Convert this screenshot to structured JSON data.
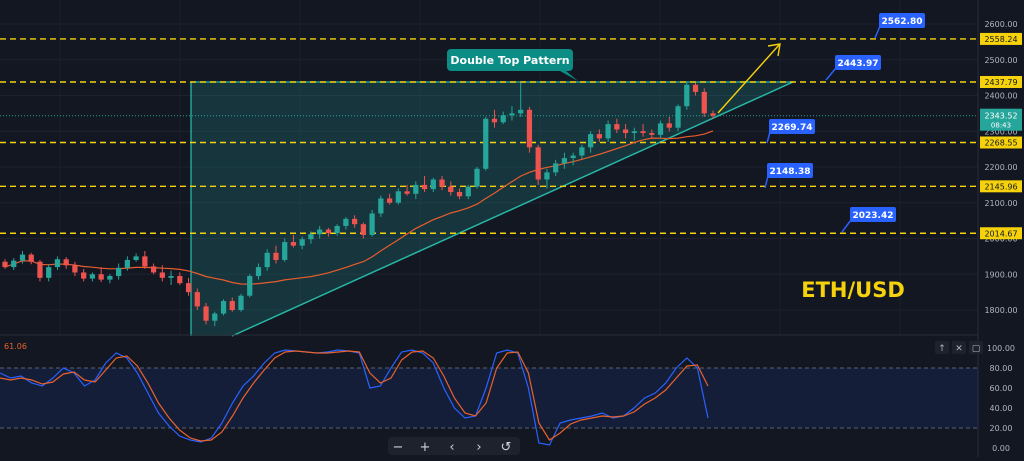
{
  "chart_data": [
    {
      "type": "candlestick",
      "symbol_label": "ETH/USD",
      "ylim": [
        1740,
        2640
      ],
      "y_ticks": [
        1800,
        1900,
        2000,
        2100,
        2200,
        2300,
        2400,
        2500,
        2600
      ],
      "y_tick_labels": [
        "1800.00",
        "1900.00",
        "2000.00",
        "2100.00",
        "2200.00",
        "2300.00",
        "2400.00",
        "2500.00",
        "2600.00"
      ],
      "current_price": 2343.52,
      "current_price_label": "2343.52",
      "countdown_label": "08:43",
      "levels": [
        {
          "value": 2558.24,
          "label": "2558.24"
        },
        {
          "value": 2437.79,
          "label": "2437.79"
        },
        {
          "value": 2268.55,
          "label": "2268.55"
        },
        {
          "value": 2145.96,
          "label": "2145.96"
        },
        {
          "value": 2014.67,
          "label": "2014.67"
        }
      ],
      "callouts": [
        "2562.80",
        "2443.97",
        "2269.74",
        "2148.38",
        "2023.42"
      ],
      "annotation": "Double Top Pattern",
      "candles": [
        [
          1935,
          1942,
          1915,
          1920
        ],
        [
          1920,
          1945,
          1912,
          1938
        ],
        [
          1938,
          1965,
          1930,
          1955
        ],
        [
          1955,
          1960,
          1928,
          1935
        ],
        [
          1935,
          1940,
          1880,
          1890
        ],
        [
          1890,
          1928,
          1880,
          1920
        ],
        [
          1920,
          1950,
          1912,
          1942
        ],
        [
          1942,
          1948,
          1915,
          1925
        ],
        [
          1925,
          1935,
          1895,
          1905
        ],
        [
          1905,
          1915,
          1880,
          1888
        ],
        [
          1888,
          1905,
          1880,
          1900
        ],
        [
          1900,
          1920,
          1878,
          1885
        ],
        [
          1885,
          1900,
          1875,
          1895
        ],
        [
          1895,
          1930,
          1885,
          1918
        ],
        [
          1918,
          1950,
          1910,
          1940
        ],
        [
          1940,
          1958,
          1935,
          1950
        ],
        [
          1950,
          1965,
          1915,
          1922
        ],
        [
          1922,
          1930,
          1900,
          1905
        ],
        [
          1905,
          1925,
          1880,
          1890
        ],
        [
          1890,
          1910,
          1870,
          1895
        ],
        [
          1895,
          1905,
          1870,
          1875
        ],
        [
          1875,
          1890,
          1840,
          1850
        ],
        [
          1850,
          1860,
          1800,
          1810
        ],
        [
          1810,
          1820,
          1760,
          1770
        ],
        [
          1770,
          1795,
          1755,
          1790
        ],
        [
          1790,
          1830,
          1785,
          1825
        ],
        [
          1825,
          1835,
          1795,
          1800
        ],
        [
          1800,
          1845,
          1795,
          1840
        ],
        [
          1840,
          1900,
          1835,
          1895
        ],
        [
          1895,
          1930,
          1885,
          1920
        ],
        [
          1920,
          1970,
          1910,
          1960
        ],
        [
          1960,
          1980,
          1930,
          1940
        ],
        [
          1940,
          2000,
          1935,
          1990
        ],
        [
          1990,
          2010,
          1975,
          1980
        ],
        [
          1980,
          2005,
          1970,
          1998
        ],
        [
          1998,
          2020,
          1985,
          2012
        ],
        [
          2012,
          2035,
          2000,
          2025
        ],
        [
          2025,
          2030,
          2005,
          2015
        ],
        [
          2015,
          2040,
          2008,
          2035
        ],
        [
          2035,
          2060,
          2025,
          2055
        ],
        [
          2055,
          2065,
          2030,
          2040
        ],
        [
          2040,
          2045,
          2000,
          2010
        ],
        [
          2010,
          2080,
          2005,
          2070
        ],
        [
          2070,
          2120,
          2060,
          2112
        ],
        [
          2112,
          2125,
          2095,
          2100
        ],
        [
          2100,
          2140,
          2095,
          2132
        ],
        [
          2132,
          2150,
          2120,
          2125
        ],
        [
          2125,
          2160,
          2110,
          2150
        ],
        [
          2150,
          2175,
          2130,
          2138
        ],
        [
          2138,
          2170,
          2130,
          2165
        ],
        [
          2165,
          2175,
          2135,
          2145
        ],
        [
          2145,
          2160,
          2120,
          2130
        ],
        [
          2130,
          2140,
          2110,
          2118
        ],
        [
          2118,
          2150,
          2110,
          2145
        ],
        [
          2145,
          2200,
          2140,
          2195
        ],
        [
          2195,
          2340,
          2190,
          2335
        ],
        [
          2335,
          2360,
          2310,
          2325
        ],
        [
          2325,
          2355,
          2320,
          2345
        ],
        [
          2345,
          2370,
          2330,
          2350
        ],
        [
          2350,
          2437,
          2340,
          2360
        ],
        [
          2360,
          2368,
          2240,
          2255
        ],
        [
          2255,
          2262,
          2150,
          2165
        ],
        [
          2165,
          2195,
          2140,
          2185
        ],
        [
          2185,
          2220,
          2175,
          2210
        ],
        [
          2210,
          2240,
          2195,
          2225
        ],
        [
          2225,
          2240,
          2205,
          2232
        ],
        [
          2232,
          2262,
          2222,
          2255
        ],
        [
          2255,
          2300,
          2240,
          2292
        ],
        [
          2292,
          2305,
          2270,
          2280
        ],
        [
          2280,
          2330,
          2270,
          2320
        ],
        [
          2320,
          2335,
          2295,
          2305
        ],
        [
          2305,
          2320,
          2280,
          2295
        ],
        [
          2295,
          2310,
          2275,
          2300
        ],
        [
          2300,
          2320,
          2285,
          2295
        ],
        [
          2295,
          2305,
          2280,
          2290
        ],
        [
          2290,
          2330,
          2280,
          2322
        ],
        [
          2322,
          2340,
          2300,
          2310
        ],
        [
          2310,
          2375,
          2300,
          2370
        ],
        [
          2370,
          2440,
          2360,
          2430
        ],
        [
          2430,
          2435,
          2400,
          2410
        ],
        [
          2410,
          2420,
          2340,
          2350
        ],
        [
          2350,
          2358,
          2335,
          2343.52
        ]
      ],
      "sma_period": 20
    },
    {
      "type": "line",
      "indicator_label": "61.06",
      "ylim": [
        0,
        100
      ],
      "y_ticks": [
        0,
        20,
        40,
        60,
        80,
        100
      ],
      "y_tick_labels": [
        "0.00",
        "20.00",
        "40.00",
        "60.00",
        "80.00",
        "100.00"
      ],
      "bands": [
        20,
        80
      ],
      "series": [
        {
          "values": [
            75,
            70,
            72,
            65,
            62,
            70,
            80,
            75,
            62,
            68,
            85,
            95,
            90,
            75,
            55,
            35,
            22,
            12,
            8,
            6,
            10,
            25,
            45,
            62,
            72,
            85,
            95,
            98,
            97,
            96,
            95,
            96,
            98,
            97,
            95,
            60,
            62,
            80,
            96,
            98,
            95,
            85,
            60,
            40,
            30,
            32,
            60,
            95,
            98,
            95,
            60,
            5,
            3,
            25,
            28,
            30,
            32,
            35,
            30,
            32,
            40,
            50,
            55,
            65,
            80,
            90,
            80,
            30
          ]
        },
        {
          "values": [
            70,
            68,
            70,
            68,
            64,
            66,
            74,
            76,
            68,
            66,
            78,
            90,
            92,
            82,
            65,
            45,
            30,
            18,
            10,
            7,
            8,
            16,
            32,
            50,
            65,
            78,
            90,
            96,
            97,
            96,
            95,
            95,
            96,
            97,
            96,
            75,
            65,
            70,
            88,
            96,
            97,
            90,
            72,
            50,
            35,
            32,
            45,
            80,
            95,
            96,
            75,
            25,
            8,
            15,
            24,
            28,
            30,
            32,
            31,
            32,
            36,
            44,
            50,
            58,
            70,
            82,
            83,
            62
          ]
        }
      ]
    }
  ],
  "toolbar": {
    "zoom_out": "−",
    "zoom_in": "+",
    "prev": "‹",
    "next": "›",
    "reset": "↺"
  },
  "indicator_controls": [
    "↑",
    "✕",
    "▢"
  ],
  "colors": {
    "background": "#131722",
    "up": "#26a69a",
    "down": "#ef5350",
    "level": "#f5d20b",
    "callout": "#2962ff",
    "annotation_bg": "#0b8d86",
    "triangle": "#26b7a6",
    "sma": "#e85d2e",
    "stoch_k": "#2962ff",
    "stoch_d": "#e8622d",
    "arrow": "#f5d20b",
    "symbol": "#f5d20b"
  }
}
